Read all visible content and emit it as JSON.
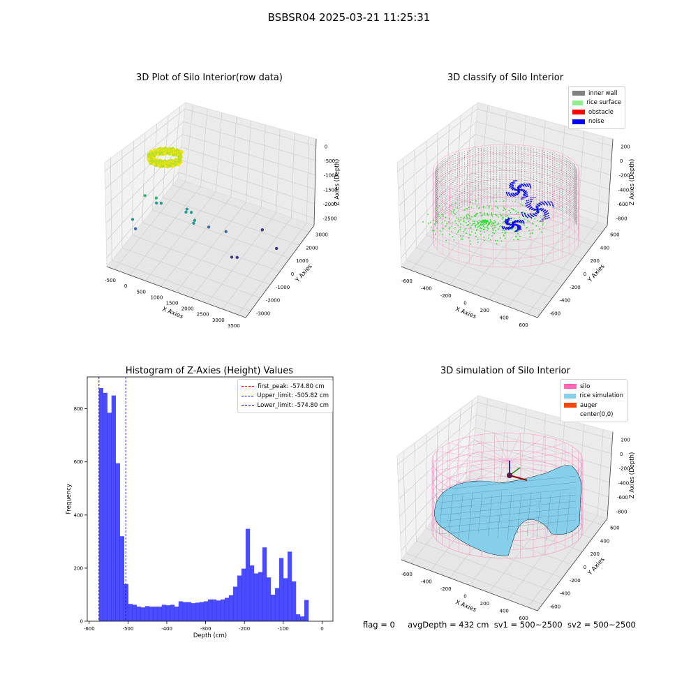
{
  "suptitle": "BSBSR04 2025-03-21 11:25:31",
  "footer": {
    "flag": "flag = 0",
    "avg_depth": "avgDepth = 432 cm",
    "sv1": "sv1 = 500~2500",
    "sv2": "sv2 = 500~2500"
  },
  "chart_data": [
    {
      "id": "raw",
      "type": "scatter",
      "title": "3D Plot of Silo Interior(row data)",
      "xlabel": "X Axies",
      "ylabel": "Y Axies",
      "zlabel": "Z Axies (Depth)",
      "xticks": [
        "-500",
        "0",
        "500",
        "1000",
        "1500",
        "2000",
        "2500",
        "3000",
        "3500"
      ],
      "yticks": [
        "-3000",
        "-2000",
        "-1000",
        "0",
        "1000",
        "2000",
        "3000"
      ],
      "zticks": [
        "0",
        "-500",
        "-1000",
        "-1500",
        "-2000",
        "-2500"
      ],
      "xlim": [
        -700,
        3600
      ],
      "ylim": [
        -3200,
        3600
      ],
      "zlim": [
        -2900,
        200
      ],
      "grid": true,
      "colors": {
        "high": "#f5e61a",
        "mid": "#31c58a",
        "low": "#453781",
        "teal": "#2c9c92"
      },
      "cluster": {
        "note": "dense ring of points near surface",
        "depth_range": [
          -800,
          0
        ]
      },
      "points": [
        {
          "x": 100,
          "y": -1900,
          "z": -1000
        },
        {
          "x": 350,
          "y": -1600,
          "z": -1100
        },
        {
          "x": 500,
          "y": -1600,
          "z": -1200
        },
        {
          "x": 250,
          "y": -1300,
          "z": -1400
        },
        {
          "x": 1100,
          "y": -1000,
          "z": -1400
        },
        {
          "x": 1200,
          "y": -900,
          "z": -1500
        },
        {
          "x": 1000,
          "y": -800,
          "z": -1600
        },
        {
          "x": -200,
          "y": -2200,
          "z": -1700
        },
        {
          "x": -150,
          "y": -2100,
          "z": -2000
        },
        {
          "x": 1300,
          "y": -900,
          "z": -1700
        },
        {
          "x": 1200,
          "y": -700,
          "z": -1900
        },
        {
          "x": 1500,
          "y": -200,
          "z": -2100
        },
        {
          "x": 1800,
          "y": 500,
          "z": -2400
        },
        {
          "x": 2500,
          "y": 1800,
          "z": -2600
        },
        {
          "x": 2300,
          "y": -500,
          "z": -2600
        },
        {
          "x": 2400,
          "y": -300,
          "z": -2650
        },
        {
          "x": 3200,
          "y": 1000,
          "z": -2600
        }
      ]
    },
    {
      "id": "classify",
      "type": "scatter",
      "title": "3D classify of Silo Interior",
      "xlabel": "X Axies",
      "ylabel": "Y Axies",
      "zlabel": "Z Axies (Depth)",
      "xticks": [
        "-600",
        "-400",
        "-200",
        "0",
        "200",
        "400",
        "600"
      ],
      "yticks": [
        "-600",
        "-400",
        "-200",
        "0",
        "200",
        "400",
        "600"
      ],
      "zticks": [
        "200",
        "0",
        "-200",
        "-400",
        "-600",
        "-800"
      ],
      "xlim": [
        -650,
        650
      ],
      "ylim": [
        -650,
        650
      ],
      "zlim": [
        -950,
        300
      ],
      "legend": [
        {
          "label": "inner wall",
          "color": "#808080"
        },
        {
          "label": "rice surface",
          "color": "#90ee90"
        },
        {
          "label": "obstacle",
          "color": "#ff0000"
        },
        {
          "label": "noise",
          "color": "#0000ff"
        }
      ],
      "legend_loc": "top-right",
      "silo_color": "#ff69b4"
    },
    {
      "id": "histogram",
      "type": "bar",
      "title": "Histogram of Z-Axies (Height) Values",
      "xlabel": "Depth (cm)",
      "ylabel": "Frequency",
      "xticks": [
        -600,
        -500,
        -400,
        -300,
        -200,
        -100,
        0
      ],
      "yticks": [
        0,
        200,
        400,
        600,
        800
      ],
      "xlim": [
        -605,
        28
      ],
      "ylim": [
        0,
        920
      ],
      "bar_color": "#0000ff",
      "bin_start": -575,
      "bin_width": 10.8,
      "values": [
        878,
        860,
        785,
        850,
        595,
        320,
        140,
        65,
        62,
        55,
        52,
        57,
        55,
        55,
        55,
        62,
        60,
        62,
        55,
        75,
        72,
        72,
        68,
        70,
        72,
        75,
        82,
        82,
        78,
        82,
        88,
        98,
        130,
        172,
        198,
        348,
        210,
        180,
        185,
        278,
        165,
        100,
        125,
        238,
        162,
        262,
        150,
        26,
        18,
        80
      ],
      "lines": [
        {
          "label": "first_peak: -574.80 cm",
          "x": -574.8,
          "color": "#ff0000"
        },
        {
          "label": "Upper_limit: -505.82 cm",
          "x": -505.82,
          "color": "#0000cd"
        },
        {
          "label": "Lower_limit: -574.80 cm",
          "x": -574.8,
          "color": "#0000cd"
        }
      ],
      "legend_loc": "top-right",
      "grid": false
    },
    {
      "id": "simulation",
      "type": "surface",
      "title": "3D simulation of Silo Interior",
      "xlabel": "X Axies",
      "ylabel": "Y Axies",
      "zlabel": "Z Axies (Depth)",
      "xticks": [
        "-600",
        "-400",
        "-200",
        "0",
        "200",
        "400",
        "600"
      ],
      "yticks": [
        "-600",
        "-400",
        "-200",
        "0",
        "200",
        "400",
        "600"
      ],
      "zticks": [
        "200",
        "0",
        "-200",
        "-400",
        "-600",
        "-800"
      ],
      "xlim": [
        -650,
        650
      ],
      "ylim": [
        -650,
        650
      ],
      "zlim": [
        -950,
        300
      ],
      "legend": [
        {
          "label": "silo",
          "color": "#ff69b4"
        },
        {
          "label": "rice simulation",
          "color": "#87ceeb"
        },
        {
          "label": "auger",
          "color": "#ff4500"
        },
        {
          "label": "center(0,0)",
          "color": ""
        }
      ],
      "legend_loc": "top-right"
    }
  ]
}
